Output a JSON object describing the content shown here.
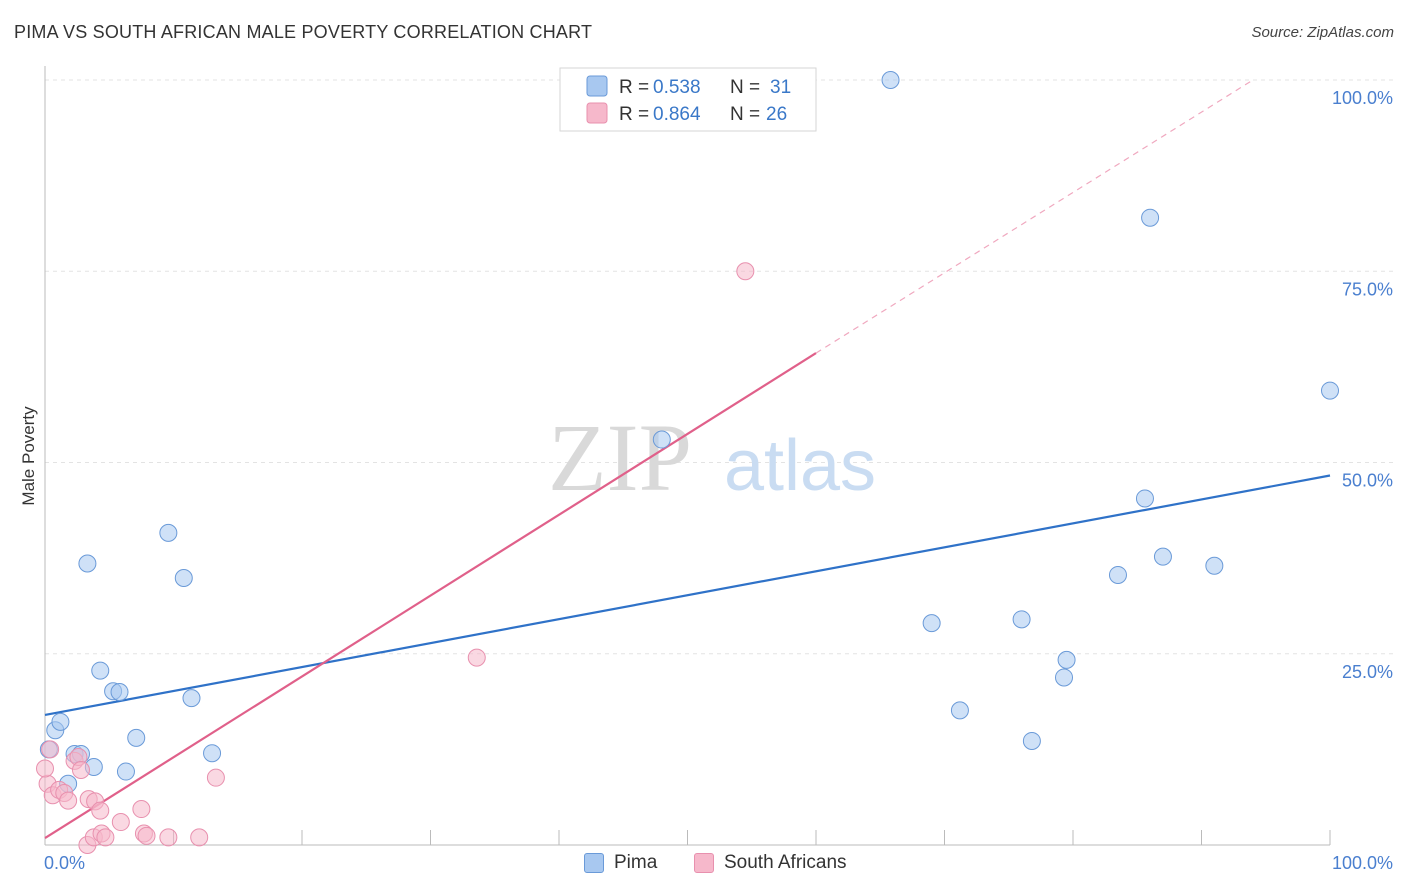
{
  "chart_data": {
    "type": "scatter",
    "title": "PIMA VS SOUTH AFRICAN MALE POVERTY CORRELATION CHART",
    "source": "Source: ZipAtlas.com",
    "ylabel": "Male Poverty",
    "xlabel": "",
    "xlim": [
      0,
      100
    ],
    "ylim": [
      0,
      100
    ],
    "x_tick_labels": [
      "0.0%",
      "100.0%"
    ],
    "y_tick_values": [
      25,
      50,
      75,
      100
    ],
    "y_tick_labels": [
      "25.0%",
      "50.0%",
      "75.0%",
      "100.0%"
    ],
    "grid": true,
    "watermark": "ZIPatlas",
    "legend": {
      "placement": "top-center",
      "rows": [
        {
          "r_label": "R = ",
          "r_value": "0.538",
          "n_label": "N = ",
          "n_value": "31"
        },
        {
          "r_label": "R = ",
          "r_value": "0.864",
          "n_label": "N = ",
          "n_value": "26"
        }
      ]
    },
    "series": [
      {
        "name": "Pima",
        "fill": "#a8c8f0",
        "stroke": "#6a9ad8",
        "line_color": "#2f72c8",
        "trend": {
          "x0": 0,
          "y0": 17.0,
          "x1": 100,
          "y1": 48.3
        },
        "points": [
          [
            0.3,
            12.5
          ],
          [
            0.8,
            15.0
          ],
          [
            1.2,
            16.1
          ],
          [
            1.8,
            8.0
          ],
          [
            2.3,
            11.9
          ],
          [
            2.8,
            11.9
          ],
          [
            3.3,
            36.8
          ],
          [
            3.8,
            10.2
          ],
          [
            4.3,
            22.8
          ],
          [
            5.3,
            20.1
          ],
          [
            5.8,
            20.0
          ],
          [
            6.3,
            9.6
          ],
          [
            7.1,
            14.0
          ],
          [
            9.6,
            40.8
          ],
          [
            10.8,
            34.9
          ],
          [
            11.4,
            19.2
          ],
          [
            13.0,
            12.0
          ],
          [
            48.0,
            53.0
          ],
          [
            65.8,
            100.0
          ],
          [
            69.0,
            29.0
          ],
          [
            71.2,
            17.6
          ],
          [
            76.0,
            29.5
          ],
          [
            76.8,
            13.6
          ],
          [
            79.3,
            21.9
          ],
          [
            79.5,
            24.2
          ],
          [
            83.5,
            35.3
          ],
          [
            85.6,
            45.3
          ],
          [
            86.0,
            82.0
          ],
          [
            87.0,
            37.7
          ],
          [
            91.0,
            36.5
          ],
          [
            100.0,
            59.4
          ]
        ]
      },
      {
        "name": "South Africans",
        "fill": "#f6b8cb",
        "stroke": "#e890ae",
        "line_color": "#e0608a",
        "trend": {
          "x0": 0,
          "y0": 0.9,
          "x1": 60,
          "y1": 64.3
        },
        "trend_dashed": {
          "x0": 60,
          "y0": 64.3,
          "x1": 94,
          "y1": 100.0
        },
        "points": [
          [
            0.2,
            8.0
          ],
          [
            0.4,
            12.5
          ],
          [
            0.6,
            6.5
          ],
          [
            1.1,
            7.2
          ],
          [
            1.5,
            6.8
          ],
          [
            1.8,
            5.8
          ],
          [
            2.3,
            11.0
          ],
          [
            2.6,
            11.5
          ],
          [
            2.8,
            9.8
          ],
          [
            3.3,
            0.0
          ],
          [
            3.4,
            6.0
          ],
          [
            3.8,
            1.0
          ],
          [
            3.9,
            5.7
          ],
          [
            4.3,
            4.5
          ],
          [
            4.4,
            1.5
          ],
          [
            4.7,
            1.0
          ],
          [
            5.9,
            3.0
          ],
          [
            7.5,
            4.7
          ],
          [
            7.7,
            1.5
          ],
          [
            7.9,
            1.2
          ],
          [
            9.6,
            1.0
          ],
          [
            12.0,
            1.0
          ],
          [
            13.3,
            8.8
          ],
          [
            33.6,
            24.5
          ],
          [
            54.5,
            75.0
          ],
          [
            0.0,
            10.0
          ]
        ]
      }
    ]
  }
}
